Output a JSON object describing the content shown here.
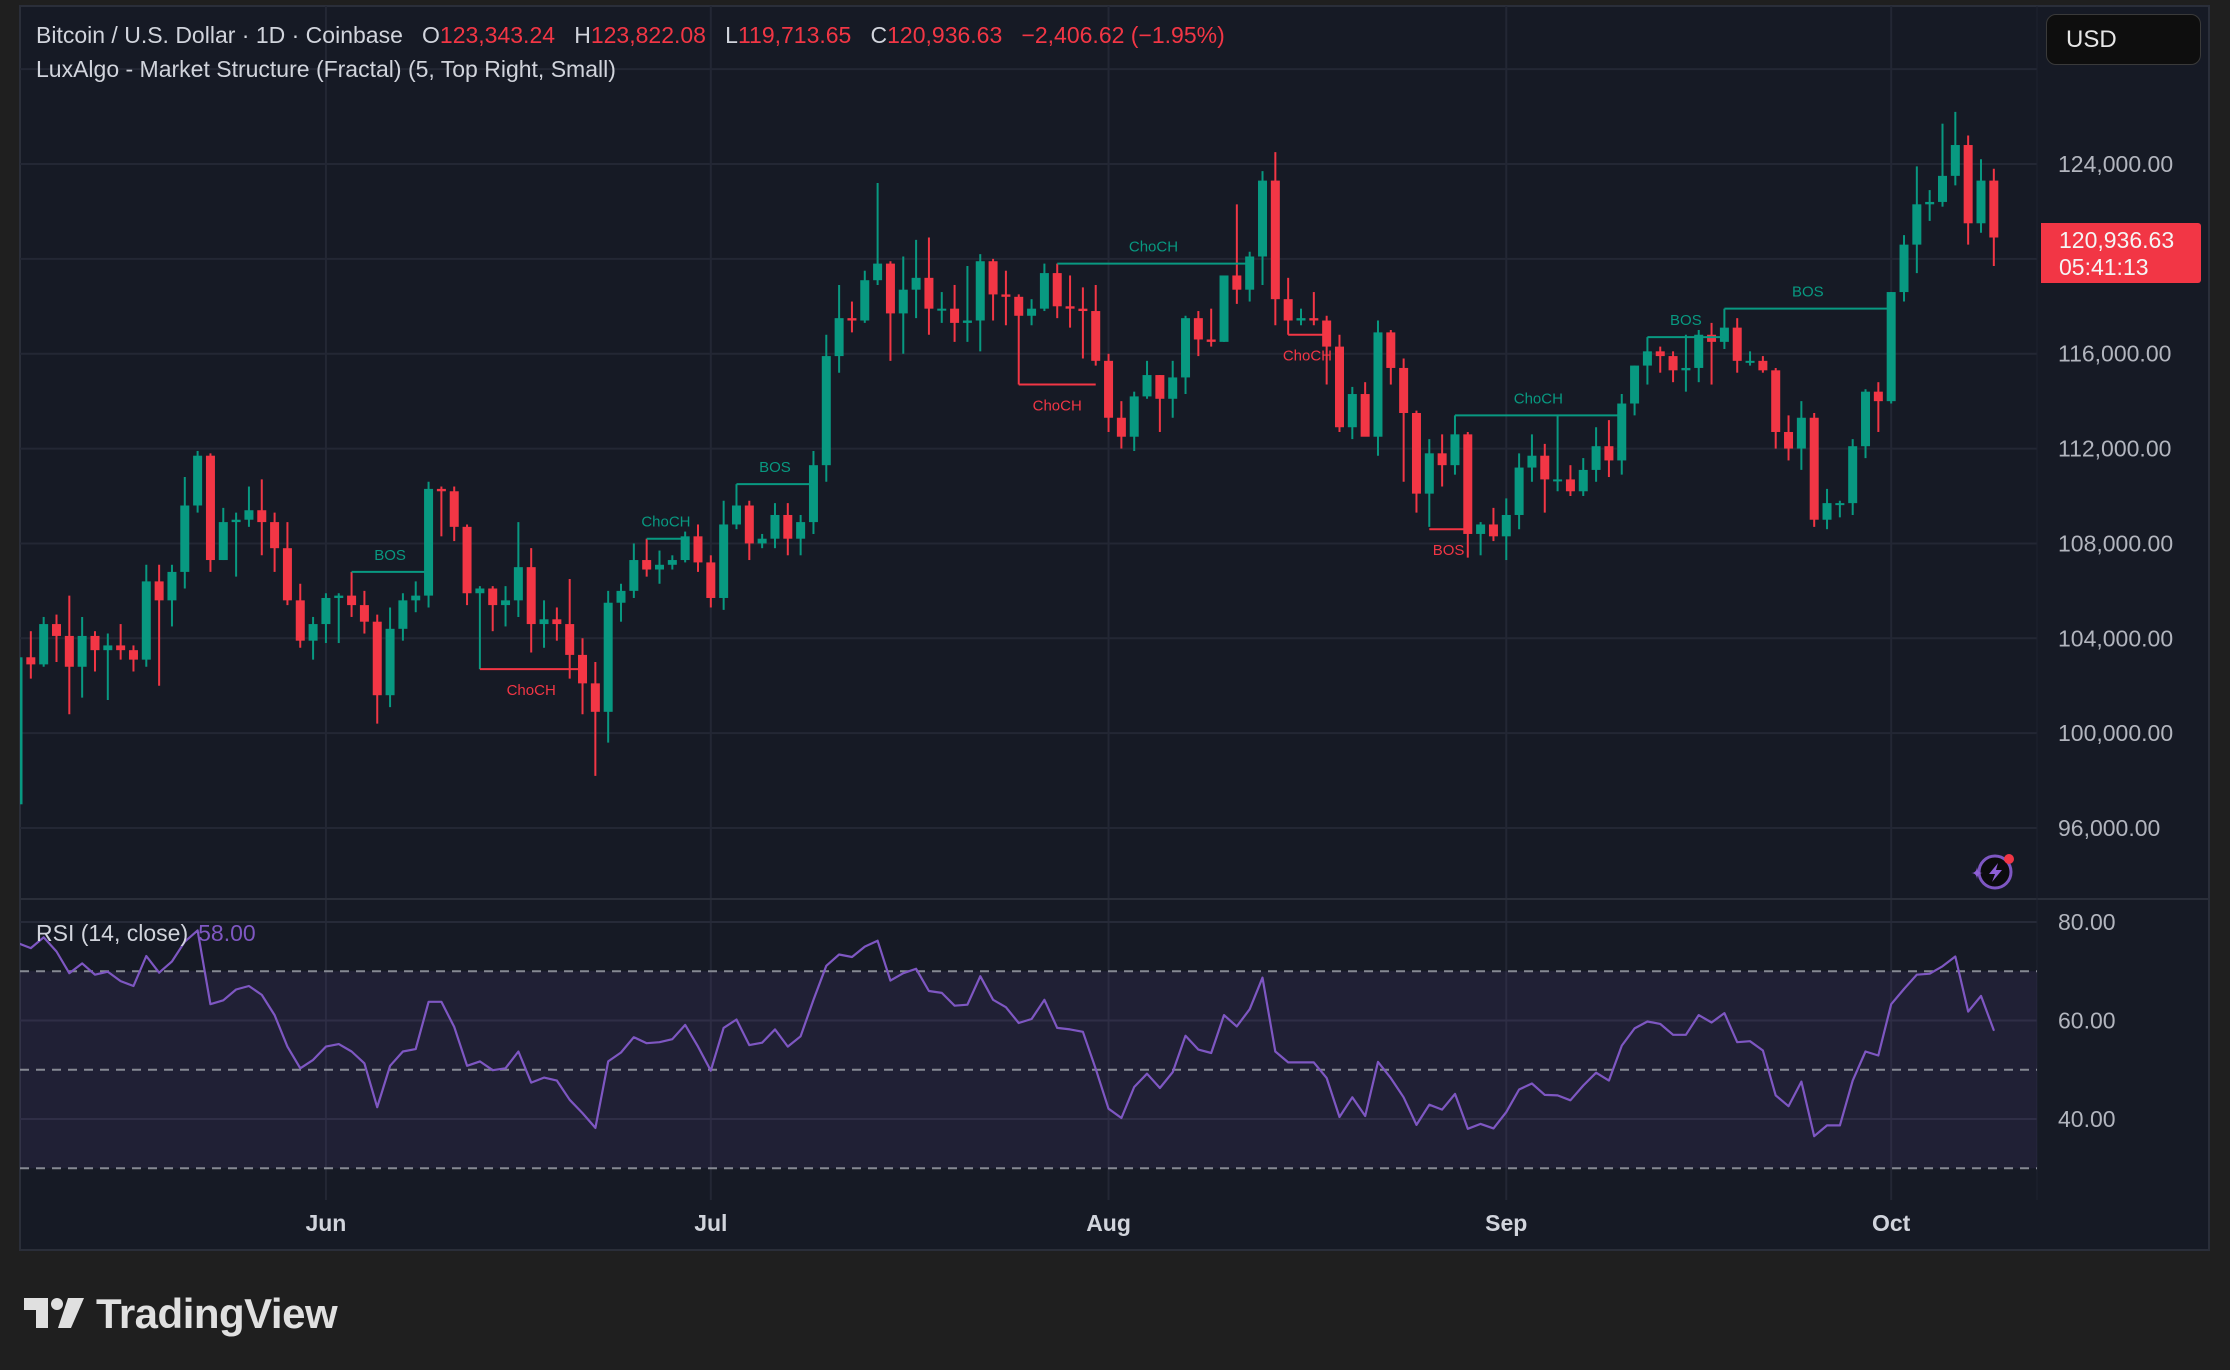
{
  "header": {
    "symbol": "Bitcoin / U.S. Dollar · 1D · Coinbase",
    "o_label": "O",
    "o": "123,343.24",
    "h_label": "H",
    "h": "123,822.08",
    "l_label": "L",
    "l": "119,713.65",
    "c_label": "C",
    "c": "120,936.63",
    "change": "−2,406.62 (−1.95%)"
  },
  "indicator": "LuxAlgo - Market Structure (Fractal) (5, Top Right, Small)",
  "currency_button": "USD",
  "price_tag": {
    "price": "120,936.63",
    "countdown": "05:41:13"
  },
  "rsi": {
    "label": "RSI (14, close)",
    "value": "58.00"
  },
  "brand": {
    "name": "TradingView"
  },
  "colors": {
    "up": "#089981",
    "down": "#f23645",
    "rsi": "#7e57c2",
    "background": "#161a25"
  },
  "chart_data": {
    "type": "candlestick",
    "interval": "1D",
    "start_date": "2025-05-08",
    "units": "thousand USD",
    "ylim": [
      94,
      130
    ],
    "ohlc": [
      [
        97.0,
        104.0,
        96.9,
        103.2
      ],
      [
        103.2,
        104.3,
        102.3,
        102.9
      ],
      [
        102.9,
        104.9,
        102.8,
        104.6
      ],
      [
        104.6,
        105.0,
        103.0,
        104.1
      ],
      [
        104.1,
        105.8,
        100.8,
        102.8
      ],
      [
        102.8,
        104.9,
        101.5,
        104.1
      ],
      [
        104.1,
        104.3,
        102.6,
        103.5
      ],
      [
        103.5,
        104.2,
        101.4,
        103.7
      ],
      [
        103.7,
        104.6,
        103.1,
        103.5
      ],
      [
        103.5,
        103.7,
        102.6,
        103.1
      ],
      [
        103.1,
        107.1,
        102.8,
        106.4
      ],
      [
        106.4,
        107.1,
        102.0,
        105.6
      ],
      [
        105.6,
        107.1,
        104.5,
        106.8
      ],
      [
        106.8,
        110.8,
        106.1,
        109.6
      ],
      [
        109.6,
        111.9,
        109.3,
        111.7
      ],
      [
        111.7,
        111.8,
        106.8,
        107.3
      ],
      [
        107.3,
        109.5,
        107.3,
        108.9
      ],
      [
        108.9,
        109.3,
        106.6,
        109.0
      ],
      [
        109.0,
        110.4,
        108.7,
        109.4
      ],
      [
        109.4,
        110.7,
        107.5,
        108.9
      ],
      [
        108.9,
        109.3,
        106.8,
        107.8
      ],
      [
        107.8,
        108.9,
        105.4,
        105.6
      ],
      [
        105.6,
        106.3,
        103.6,
        103.9
      ],
      [
        103.9,
        104.9,
        103.1,
        104.6
      ],
      [
        104.6,
        105.9,
        103.8,
        105.7
      ],
      [
        105.7,
        105.9,
        103.8,
        105.8
      ],
      [
        105.8,
        106.8,
        104.9,
        105.4
      ],
      [
        105.4,
        106.0,
        104.2,
        104.7
      ],
      [
        104.7,
        105.0,
        100.4,
        101.6
      ],
      [
        101.6,
        105.3,
        101.1,
        104.4
      ],
      [
        104.4,
        105.9,
        103.9,
        105.6
      ],
      [
        105.6,
        106.4,
        105.1,
        105.8
      ],
      [
        105.8,
        110.6,
        105.3,
        110.3
      ],
      [
        110.3,
        110.4,
        108.3,
        110.2
      ],
      [
        110.2,
        110.4,
        108.1,
        108.7
      ],
      [
        108.7,
        108.8,
        105.4,
        105.9
      ],
      [
        105.9,
        106.2,
        102.7,
        106.1
      ],
      [
        106.1,
        106.2,
        104.3,
        105.4
      ],
      [
        105.4,
        106.2,
        104.5,
        105.6
      ],
      [
        105.6,
        108.9,
        104.9,
        107.0
      ],
      [
        107.0,
        107.8,
        103.4,
        104.6
      ],
      [
        104.6,
        105.6,
        103.6,
        104.8
      ],
      [
        104.8,
        105.3,
        103.9,
        104.6
      ],
      [
        104.6,
        106.5,
        102.3,
        103.3
      ],
      [
        103.3,
        104.0,
        100.8,
        102.1
      ],
      [
        102.1,
        103.0,
        98.2,
        100.9
      ],
      [
        100.9,
        106.0,
        99.6,
        105.5
      ],
      [
        105.5,
        106.3,
        104.7,
        106.0
      ],
      [
        106.0,
        108.0,
        105.7,
        107.3
      ],
      [
        107.3,
        108.2,
        106.6,
        106.9
      ],
      [
        106.9,
        107.7,
        106.3,
        107.1
      ],
      [
        107.1,
        107.5,
        106.9,
        107.3
      ],
      [
        107.3,
        108.5,
        107.2,
        108.3
      ],
      [
        108.3,
        108.8,
        106.8,
        107.2
      ],
      [
        107.2,
        107.5,
        105.3,
        105.7
      ],
      [
        105.7,
        109.8,
        105.2,
        108.8
      ],
      [
        108.8,
        110.5,
        108.6,
        109.6
      ],
      [
        109.6,
        109.8,
        107.3,
        108.0
      ],
      [
        108.0,
        108.4,
        107.8,
        108.2
      ],
      [
        108.2,
        109.7,
        107.8,
        109.2
      ],
      [
        109.2,
        109.7,
        107.5,
        108.2
      ],
      [
        108.2,
        109.2,
        107.5,
        108.9
      ],
      [
        108.9,
        111.9,
        108.4,
        111.3
      ],
      [
        111.3,
        116.8,
        110.6,
        115.9
      ],
      [
        115.9,
        118.9,
        115.2,
        117.5
      ],
      [
        117.5,
        118.2,
        116.9,
        117.4
      ],
      [
        117.4,
        119.5,
        117.3,
        119.1
      ],
      [
        119.1,
        123.2,
        118.9,
        119.8
      ],
      [
        119.8,
        119.9,
        115.7,
        117.7
      ],
      [
        117.7,
        120.1,
        116.0,
        118.7
      ],
      [
        118.7,
        120.8,
        117.5,
        119.2
      ],
      [
        119.2,
        120.9,
        116.8,
        117.9
      ],
      [
        117.9,
        118.6,
        117.3,
        117.9
      ],
      [
        117.9,
        118.9,
        116.5,
        117.3
      ],
      [
        117.3,
        119.7,
        116.5,
        117.4
      ],
      [
        117.4,
        120.2,
        116.1,
        119.9
      ],
      [
        119.9,
        120.0,
        117.4,
        118.5
      ],
      [
        118.5,
        119.5,
        117.2,
        118.4
      ],
      [
        118.4,
        118.5,
        114.7,
        117.6
      ],
      [
        117.6,
        118.3,
        117.2,
        117.9
      ],
      [
        117.9,
        119.8,
        117.8,
        119.4
      ],
      [
        119.4,
        119.8,
        117.5,
        118.0
      ],
      [
        118.0,
        119.3,
        117.1,
        117.9
      ],
      [
        117.9,
        118.8,
        115.8,
        117.8
      ],
      [
        117.8,
        118.9,
        115.5,
        115.7
      ],
      [
        115.7,
        116.0,
        112.7,
        113.3
      ],
      [
        113.3,
        114.0,
        112.0,
        112.5
      ],
      [
        112.5,
        114.4,
        111.9,
        114.2
      ],
      [
        114.2,
        115.7,
        114.1,
        115.1
      ],
      [
        115.1,
        115.1,
        112.7,
        114.1
      ],
      [
        114.1,
        115.7,
        113.3,
        115.0
      ],
      [
        115.0,
        117.6,
        114.3,
        117.5
      ],
      [
        117.5,
        117.8,
        115.9,
        116.6
      ],
      [
        116.6,
        117.9,
        116.3,
        116.5
      ],
      [
        116.5,
        119.3,
        116.5,
        119.3
      ],
      [
        119.3,
        122.3,
        118.1,
        118.7
      ],
      [
        118.7,
        120.3,
        118.2,
        120.1
      ],
      [
        120.1,
        123.7,
        118.9,
        123.3
      ],
      [
        123.3,
        124.5,
        117.2,
        118.3
      ],
      [
        118.3,
        119.2,
        116.8,
        117.4
      ],
      [
        117.4,
        117.9,
        117.2,
        117.5
      ],
      [
        117.5,
        118.6,
        117.2,
        117.4
      ],
      [
        117.4,
        117.6,
        114.7,
        116.3
      ],
      [
        116.3,
        116.8,
        112.7,
        112.9
      ],
      [
        112.9,
        114.6,
        112.4,
        114.3
      ],
      [
        114.3,
        114.8,
        112.6,
        112.5
      ],
      [
        112.5,
        117.4,
        111.7,
        116.9
      ],
      [
        116.9,
        117.0,
        114.7,
        115.4
      ],
      [
        115.4,
        115.8,
        110.6,
        113.5
      ],
      [
        113.5,
        113.6,
        109.3,
        110.1
      ],
      [
        110.1,
        112.4,
        108.7,
        111.8
      ],
      [
        111.8,
        112.6,
        110.4,
        111.3
      ],
      [
        111.3,
        113.4,
        110.9,
        112.6
      ],
      [
        112.6,
        112.7,
        107.4,
        108.4
      ],
      [
        108.4,
        108.9,
        107.5,
        108.8
      ],
      [
        108.8,
        109.5,
        108.1,
        108.3
      ],
      [
        108.3,
        109.9,
        107.3,
        109.2
      ],
      [
        109.2,
        111.8,
        108.6,
        111.2
      ],
      [
        111.2,
        112.6,
        110.6,
        111.7
      ],
      [
        111.7,
        112.2,
        109.3,
        110.7
      ],
      [
        110.7,
        113.4,
        110.2,
        110.7
      ],
      [
        110.7,
        111.3,
        110.0,
        110.2
      ],
      [
        110.2,
        111.6,
        110.0,
        111.1
      ],
      [
        111.1,
        112.9,
        110.6,
        112.1
      ],
      [
        112.1,
        113.2,
        110.8,
        111.5
      ],
      [
        111.5,
        114.3,
        110.9,
        113.9
      ],
      [
        113.9,
        115.5,
        113.4,
        115.5
      ],
      [
        115.5,
        116.7,
        114.7,
        116.1
      ],
      [
        116.1,
        116.3,
        115.2,
        115.9
      ],
      [
        115.9,
        116.1,
        114.8,
        115.3
      ],
      [
        115.3,
        116.8,
        114.4,
        115.4
      ],
      [
        115.4,
        117.0,
        114.8,
        116.8
      ],
      [
        116.8,
        117.3,
        114.7,
        116.5
      ],
      [
        116.5,
        117.9,
        116.2,
        117.1
      ],
      [
        117.1,
        117.5,
        115.2,
        115.7
      ],
      [
        115.7,
        116.1,
        115.5,
        115.7
      ],
      [
        115.7,
        115.9,
        115.2,
        115.3
      ],
      [
        115.3,
        115.4,
        112.0,
        112.7
      ],
      [
        112.7,
        113.4,
        111.5,
        112.0
      ],
      [
        112.0,
        114.0,
        111.1,
        113.3
      ],
      [
        113.3,
        113.5,
        108.7,
        109.0
      ],
      [
        109.0,
        110.3,
        108.6,
        109.7
      ],
      [
        109.7,
        109.8,
        109.1,
        109.7
      ],
      [
        109.7,
        112.4,
        109.2,
        112.1
      ],
      [
        112.1,
        114.5,
        111.6,
        114.4
      ],
      [
        114.4,
        114.8,
        112.7,
        114.0
      ],
      [
        114.0,
        118.6,
        113.9,
        118.6
      ],
      [
        118.6,
        121.0,
        118.2,
        120.6
      ],
      [
        120.6,
        123.9,
        119.4,
        122.3
      ],
      [
        122.3,
        122.9,
        121.6,
        122.4
      ],
      [
        122.4,
        125.7,
        122.2,
        123.5
      ],
      [
        123.5,
        126.2,
        123.1,
        124.8
      ],
      [
        124.8,
        125.2,
        120.6,
        121.5
      ],
      [
        121.5,
        124.2,
        121.1,
        123.3
      ],
      [
        123.3,
        123.8,
        119.7,
        120.9
      ]
    ],
    "structures": [
      {
        "label": "BOS",
        "dir": "up",
        "from": "2025-06-03",
        "to": "2025-06-09",
        "price": 106.8
      },
      {
        "label": "ChoCH",
        "dir": "down",
        "from": "2025-06-13",
        "to": "2025-06-21",
        "price": 102.7
      },
      {
        "label": "ChoCH",
        "dir": "up",
        "from": "2025-06-26",
        "to": "2025-06-29",
        "price": 108.2
      },
      {
        "label": "BOS",
        "dir": "up",
        "from": "2025-07-03",
        "to": "2025-07-09",
        "price": 110.5
      },
      {
        "label": "ChoCH",
        "dir": "down",
        "from": "2025-07-25",
        "to": "2025-07-31",
        "price": 114.7
      },
      {
        "label": "ChoCH",
        "dir": "up",
        "from": "2025-07-28",
        "to": "2025-08-12",
        "price": 119.8
      },
      {
        "label": "ChoCH",
        "dir": "down",
        "from": "2025-08-15",
        "to": "2025-08-18",
        "price": 116.8
      },
      {
        "label": "BOS",
        "dir": "down",
        "from": "2025-08-26",
        "to": "2025-08-29",
        "price": 108.6
      },
      {
        "label": "ChoCH",
        "dir": "up",
        "from": "2025-08-28",
        "to": "2025-09-10",
        "price": 113.4
      },
      {
        "label": "BOS",
        "dir": "up",
        "from": "2025-09-12",
        "to": "2025-09-18",
        "price": 116.7
      },
      {
        "label": "BOS",
        "dir": "up",
        "from": "2025-09-18",
        "to": "2025-10-01",
        "price": 117.9
      }
    ],
    "price_ticks": [
      {
        "value": 124,
        "label": "124,000.00"
      },
      {
        "value": 116,
        "label": "116,000.00"
      },
      {
        "value": 112,
        "label": "112,000.00"
      },
      {
        "value": 108,
        "label": "108,000.00"
      },
      {
        "value": 104,
        "label": "104,000.00"
      },
      {
        "value": 100,
        "label": "100,000.00"
      },
      {
        "value": 96,
        "label": "96,000.00"
      }
    ],
    "time_ticks": [
      {
        "date": "2025-06-01",
        "label": "Jun"
      },
      {
        "date": "2025-07-01",
        "label": "Jul"
      },
      {
        "date": "2025-08-01",
        "label": "Aug"
      },
      {
        "date": "2025-09-01",
        "label": "Sep"
      },
      {
        "date": "2025-10-01",
        "label": "Oct"
      }
    ],
    "rsi": {
      "period": 14,
      "levels": [
        70,
        50,
        30
      ],
      "ticks": [
        {
          "value": 80,
          "label": "80.00"
        },
        {
          "value": 60,
          "label": "60.00"
        },
        {
          "value": 40,
          "label": "40.00"
        }
      ],
      "values": [
        75.7,
        74.7,
        76.9,
        74,
        69.6,
        71.6,
        69.3,
        69.9,
        68,
        67,
        73.1,
        69.7,
        72,
        76,
        78.3,
        63.3,
        64.1,
        66.3,
        67,
        65.2,
        61.1,
        54.7,
        50.3,
        52,
        54.7,
        55.2,
        53.7,
        51.3,
        42.4,
        50.8,
        53.7,
        54.2,
        63.8,
        63.8,
        58.7,
        50.8,
        51.7,
        49.9,
        50.3,
        53.7,
        47.4,
        48.4,
        47.8,
        43.9,
        41.2,
        38.2,
        51.7,
        53.5,
        56.6,
        55.4,
        55.6,
        56.2,
        59.1,
        54.7,
        49.8,
        58.5,
        60.2,
        55,
        55.5,
        58.2,
        54.7,
        56.8,
        64.2,
        71.1,
        73.4,
        72.9,
        75,
        76.2,
        68.1,
        69.6,
        70.5,
        66,
        65.6,
        63,
        63.2,
        69,
        64.2,
        62.7,
        59.5,
        60.3,
        64.2,
        58.5,
        58.2,
        57.7,
        50.2,
        42.1,
        40.2,
        46.5,
        49.2,
        46.3,
        49.5,
        56.9,
        54.1,
        53.4,
        61.1,
        58.8,
        62.3,
        68.7,
        53.7,
        51.5,
        51.5,
        51.5,
        48.3,
        40.4,
        44.4,
        40.6,
        51.6,
        48.3,
        44.4,
        38.8,
        42.9,
        41.9,
        45.1,
        38,
        39,
        38.1,
        41.4,
        46,
        47.2,
        44.9,
        44.8,
        43.8,
        46.8,
        49.4,
        47.8,
        54.9,
        58.4,
        59.8,
        59.3,
        57.1,
        57.1,
        61.1,
        59.6,
        61.5,
        55.6,
        55.8,
        53.9,
        44.8,
        42.6,
        47.6,
        36.5,
        38.7,
        38.7,
        47.8,
        53.7,
        52.9,
        63.3,
        66.4,
        69.3,
        69.5,
        71,
        73,
        61.8,
        65,
        58
      ]
    }
  }
}
